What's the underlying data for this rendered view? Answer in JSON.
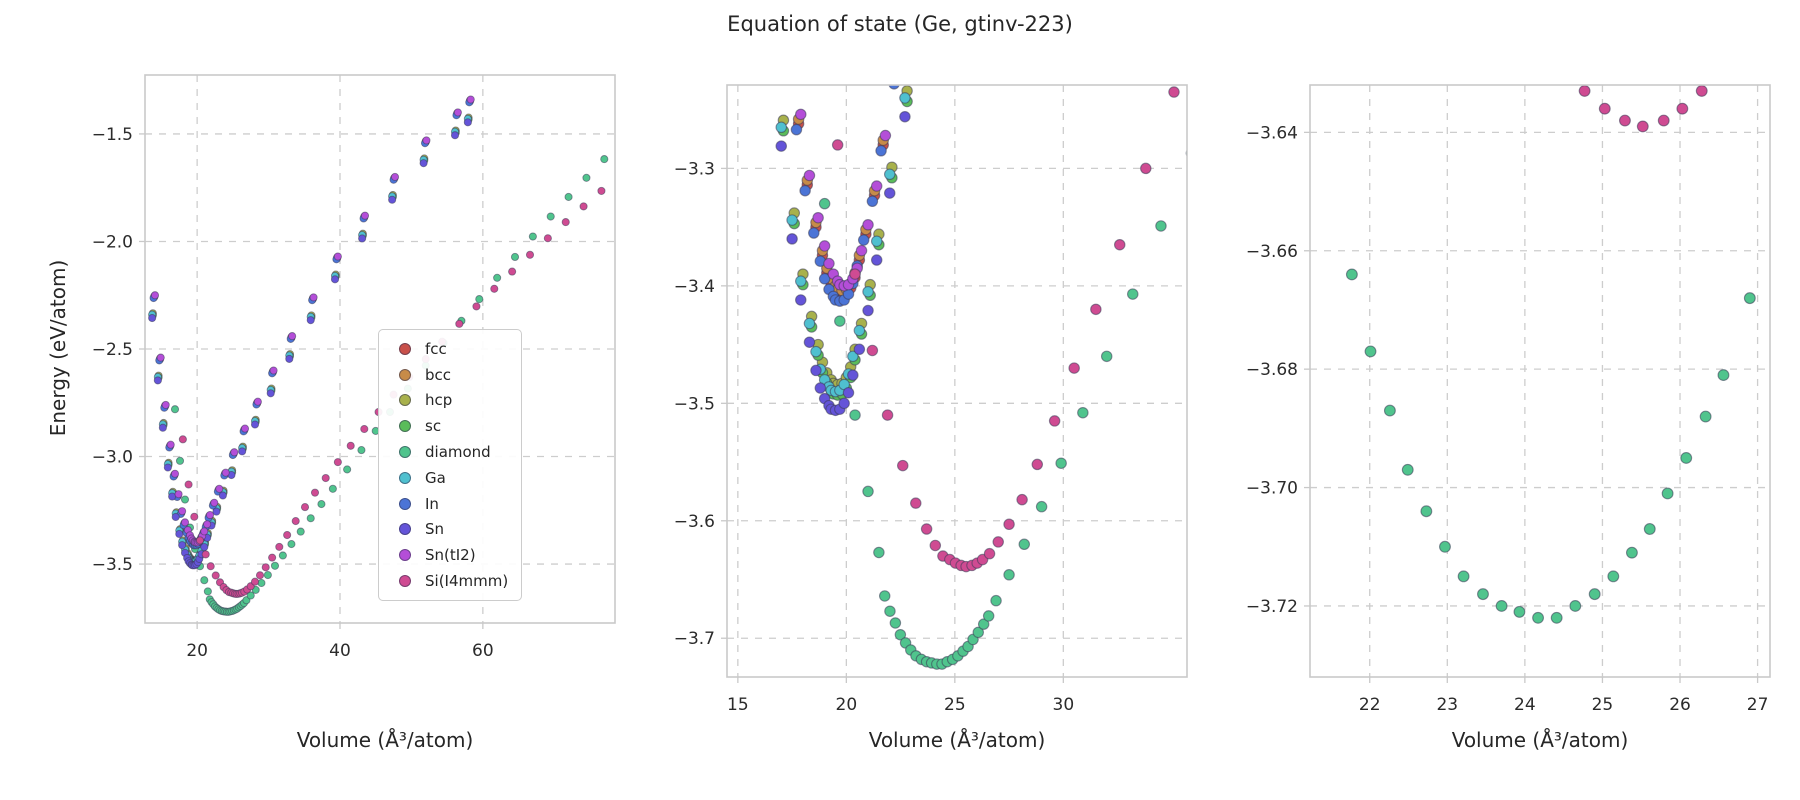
{
  "title": "Equation of state (Ge, gtinv-223)",
  "ylabel": "Energy (eV/atom)",
  "xlabel": "Volume (Å³/atom)",
  "style": {
    "grid_color": "#cdcdcd",
    "spine_color": "#c9c9c9",
    "marker_edge": "#3a3a55",
    "text_color": "#2b2b2b"
  },
  "chart_data": [
    {
      "type": "scatter",
      "panel": "overview",
      "xlim": [
        12.7,
        78.5
      ],
      "ylim": [
        -3.774,
        -1.226
      ],
      "xticks": [
        20,
        40,
        60
      ],
      "xtick_labels": [
        "20",
        "40",
        "60"
      ],
      "yticks": [
        -1.5,
        -2.0,
        -2.5,
        -3.0,
        -3.5
      ],
      "ytick_labels": [
        "−1.5",
        "−2.0",
        "−2.5",
        "−3.0",
        "−3.5"
      ],
      "xlabel": "Volume (Å³/atom)",
      "ylabel": "Energy (eV/atom)",
      "grid": true,
      "legend_position": "inside lower-right",
      "marker_radius": 3.6,
      "series": [
        {
          "name": "fcc",
          "color": "#c8504a",
          "x": [
            14.0,
            14.8,
            15.5,
            16.2,
            16.8,
            17.3,
            17.8,
            18.2,
            18.6,
            18.9,
            19.1,
            19.3,
            19.5,
            19.6,
            19.8,
            20.0,
            20.2,
            20.4,
            20.6,
            20.9,
            21.3,
            21.7,
            22.3,
            23.0,
            23.9,
            25.1,
            26.6,
            28.4,
            30.6,
            33.2,
            36.2,
            39.6,
            43.4,
            47.6,
            52.0,
            56.4,
            58.2
          ],
          "y": [
            -2.258,
            -2.548,
            -2.768,
            -2.953,
            -3.088,
            -3.183,
            -3.262,
            -3.314,
            -3.35,
            -3.374,
            -3.389,
            -3.398,
            -3.404,
            -3.407,
            -3.408,
            -3.407,
            -3.402,
            -3.393,
            -3.378,
            -3.356,
            -3.323,
            -3.28,
            -3.223,
            -3.158,
            -3.083,
            -2.988,
            -2.878,
            -2.753,
            -2.608,
            -2.448,
            -2.268,
            -2.078,
            -1.888,
            -1.708,
            -1.538,
            -1.408,
            -1.348
          ]
        },
        {
          "name": "bcc",
          "color": "#c78b48",
          "x": [
            14.0,
            14.8,
            15.5,
            16.2,
            16.8,
            17.3,
            17.8,
            18.2,
            18.6,
            18.9,
            19.1,
            19.3,
            19.5,
            19.6,
            19.8,
            20.0,
            20.2,
            20.4,
            20.6,
            20.9,
            21.3,
            21.7,
            22.3,
            23.0,
            23.9,
            25.1,
            26.6,
            28.4,
            30.6,
            33.2,
            36.2,
            39.6,
            43.4,
            47.6,
            52.0,
            56.4,
            58.2
          ],
          "y": [
            -2.254,
            -2.544,
            -2.764,
            -2.949,
            -3.084,
            -3.179,
            -3.258,
            -3.31,
            -3.346,
            -3.37,
            -3.385,
            -3.394,
            -3.4,
            -3.403,
            -3.404,
            -3.403,
            -3.398,
            -3.389,
            -3.374,
            -3.352,
            -3.319,
            -3.276,
            -3.219,
            -3.154,
            -3.079,
            -2.984,
            -2.874,
            -2.749,
            -2.604,
            -2.444,
            -2.264,
            -2.074,
            -1.884,
            -1.704,
            -1.534,
            -1.404,
            -1.344
          ]
        },
        {
          "name": "hcp",
          "color": "#a8b14c",
          "x": [
            13.8,
            14.6,
            15.3,
            16.0,
            16.6,
            17.1,
            17.6,
            18.0,
            18.4,
            18.7,
            18.9,
            19.1,
            19.3,
            19.4,
            19.6,
            19.8,
            20.0,
            20.2,
            20.4,
            20.7,
            21.1,
            21.5,
            22.1,
            22.8,
            23.7,
            24.9,
            26.4,
            28.2,
            30.4,
            33.0,
            36.0,
            39.4,
            43.2,
            47.4,
            51.8,
            56.2,
            58.0
          ],
          "y": [
            -2.334,
            -2.624,
            -2.844,
            -3.029,
            -3.164,
            -3.259,
            -3.338,
            -3.39,
            -3.426,
            -3.45,
            -3.465,
            -3.474,
            -3.48,
            -3.483,
            -3.484,
            -3.483,
            -3.478,
            -3.469,
            -3.454,
            -3.432,
            -3.399,
            -3.356,
            -3.299,
            -3.234,
            -3.159,
            -3.064,
            -2.954,
            -2.829,
            -2.684,
            -2.524,
            -2.344,
            -2.154,
            -1.964,
            -1.784,
            -1.614,
            -1.484,
            -1.424
          ]
        },
        {
          "name": "sc",
          "color": "#5abc5a",
          "x": [
            13.8,
            14.6,
            15.3,
            16.0,
            16.6,
            17.1,
            17.6,
            18.0,
            18.4,
            18.7,
            18.9,
            19.1,
            19.3,
            19.4,
            19.6,
            19.8,
            20.0,
            20.2,
            20.4,
            20.7,
            21.1,
            21.5,
            22.1,
            22.8,
            23.7,
            24.9,
            26.4,
            28.2,
            30.4,
            33.0,
            36.0,
            39.4,
            43.2,
            47.4,
            51.8,
            56.2,
            58.0
          ],
          "y": [
            -2.343,
            -2.633,
            -2.853,
            -3.038,
            -3.173,
            -3.268,
            -3.347,
            -3.399,
            -3.435,
            -3.459,
            -3.474,
            -3.483,
            -3.489,
            -3.492,
            -3.493,
            -3.492,
            -3.487,
            -3.478,
            -3.463,
            -3.441,
            -3.408,
            -3.365,
            -3.308,
            -3.243,
            -3.168,
            -3.073,
            -2.963,
            -2.838,
            -2.693,
            -2.533,
            -2.353,
            -2.163,
            -1.973,
            -1.793,
            -1.623,
            -1.493,
            -1.433
          ]
        },
        {
          "name": "diamond",
          "color": "#50c48d",
          "x": [
            16.9,
            17.6,
            18.3,
            19.0,
            19.7,
            20.4,
            21.0,
            21.5,
            21.77,
            22.01,
            22.26,
            22.49,
            22.73,
            22.97,
            23.21,
            23.46,
            23.7,
            23.93,
            24.17,
            24.41,
            24.65,
            24.9,
            25.14,
            25.38,
            25.61,
            25.84,
            26.08,
            26.33,
            26.56,
            26.9,
            27.5,
            28.2,
            29.0,
            29.9,
            30.9,
            32.0,
            33.2,
            34.5,
            35.9,
            37.4,
            39.0,
            41.0,
            43.0,
            45.0,
            47.0,
            49.5,
            52.0,
            54.5,
            57.0,
            59.5,
            62.0,
            64.5,
            67.0,
            69.5,
            72.0,
            74.5,
            77.0
          ],
          "y": [
            -2.78,
            -3.02,
            -3.2,
            -3.33,
            -3.43,
            -3.51,
            -3.575,
            -3.627,
            -3.664,
            -3.677,
            -3.687,
            -3.697,
            -3.704,
            -3.71,
            -3.715,
            -3.718,
            -3.72,
            -3.721,
            -3.722,
            -3.722,
            -3.72,
            -3.718,
            -3.715,
            -3.711,
            -3.707,
            -3.701,
            -3.695,
            -3.688,
            -3.681,
            -3.668,
            -3.646,
            -3.62,
            -3.588,
            -3.551,
            -3.508,
            -3.46,
            -3.407,
            -3.349,
            -3.287,
            -3.221,
            -3.15,
            -3.06,
            -2.97,
            -2.881,
            -2.793,
            -2.684,
            -2.577,
            -2.472,
            -2.369,
            -2.268,
            -2.169,
            -2.072,
            -1.977,
            -1.884,
            -1.793,
            -1.704,
            -1.617
          ]
        },
        {
          "name": "Ga",
          "color": "#4fc0cf",
          "x": [
            13.7,
            14.5,
            15.2,
            15.9,
            16.5,
            17.0,
            17.5,
            17.9,
            18.3,
            18.6,
            18.8,
            19.0,
            19.2,
            19.3,
            19.5,
            19.7,
            19.9,
            20.1,
            20.3,
            20.6,
            21.0,
            21.4,
            22.0,
            22.7,
            23.6,
            24.8,
            26.3,
            28.1,
            30.3,
            32.9,
            35.9,
            39.3,
            43.1,
            47.3,
            51.7,
            56.1,
            57.9
          ],
          "y": [
            -2.34,
            -2.63,
            -2.85,
            -3.035,
            -3.17,
            -3.265,
            -3.344,
            -3.396,
            -3.432,
            -3.456,
            -3.471,
            -3.48,
            -3.486,
            -3.489,
            -3.49,
            -3.489,
            -3.484,
            -3.475,
            -3.46,
            -3.438,
            -3.405,
            -3.362,
            -3.305,
            -3.24,
            -3.165,
            -3.07,
            -2.96,
            -2.835,
            -2.69,
            -2.53,
            -2.35,
            -2.16,
            -1.97,
            -1.79,
            -1.62,
            -1.49,
            -1.43
          ]
        },
        {
          "name": "In",
          "color": "#4b74d6",
          "x": [
            13.9,
            14.7,
            15.4,
            16.1,
            16.7,
            17.2,
            17.7,
            18.1,
            18.5,
            18.8,
            19.0,
            19.2,
            19.4,
            19.5,
            19.7,
            19.9,
            20.1,
            20.3,
            20.5,
            20.8,
            21.2,
            21.6,
            22.2,
            22.9,
            23.8,
            25.0,
            26.5,
            28.3,
            30.5,
            33.1,
            36.1,
            39.5,
            43.3,
            47.5,
            51.9,
            56.3,
            58.1
          ],
          "y": [
            -2.263,
            -2.553,
            -2.773,
            -2.958,
            -3.093,
            -3.188,
            -3.267,
            -3.319,
            -3.355,
            -3.379,
            -3.394,
            -3.403,
            -3.409,
            -3.412,
            -3.413,
            -3.412,
            -3.407,
            -3.398,
            -3.383,
            -3.361,
            -3.328,
            -3.285,
            -3.228,
            -3.163,
            -3.088,
            -2.993,
            -2.883,
            -2.758,
            -2.613,
            -2.453,
            -2.273,
            -2.083,
            -1.893,
            -1.713,
            -1.543,
            -1.413,
            -1.353
          ]
        },
        {
          "name": "Sn",
          "color": "#6454d8",
          "x": [
            13.7,
            14.5,
            15.2,
            15.9,
            16.5,
            17.0,
            17.5,
            17.9,
            18.3,
            18.6,
            18.8,
            19.0,
            19.2,
            19.3,
            19.5,
            19.7,
            19.9,
            20.1,
            20.3,
            20.6,
            21.0,
            21.4,
            22.0,
            22.7,
            23.6,
            24.8,
            26.3,
            28.1,
            30.3,
            32.9,
            35.9,
            39.3,
            43.1,
            47.3,
            51.7,
            56.1,
            57.9
          ],
          "y": [
            -2.356,
            -2.646,
            -2.866,
            -3.051,
            -3.186,
            -3.281,
            -3.36,
            -3.412,
            -3.448,
            -3.472,
            -3.487,
            -3.496,
            -3.502,
            -3.505,
            -3.506,
            -3.505,
            -3.5,
            -3.491,
            -3.476,
            -3.454,
            -3.421,
            -3.378,
            -3.321,
            -3.256,
            -3.181,
            -3.086,
            -2.976,
            -2.851,
            -2.706,
            -2.546,
            -2.366,
            -2.176,
            -1.986,
            -1.806,
            -1.636,
            -1.506,
            -1.446
          ]
        },
        {
          "name": "Sn(tI2)",
          "color": "#b44ed8",
          "x": [
            14.1,
            14.9,
            15.6,
            16.3,
            16.9,
            17.4,
            17.9,
            18.3,
            18.7,
            19.0,
            19.2,
            19.4,
            19.6,
            19.7,
            19.9,
            20.1,
            20.3,
            20.5,
            20.7,
            21.0,
            21.4,
            21.8,
            22.4,
            23.1,
            24.0,
            25.2,
            26.7,
            28.5,
            30.7,
            33.3,
            36.3,
            39.7,
            43.5,
            47.7,
            52.1,
            56.5,
            58.3
          ],
          "y": [
            -2.25,
            -2.54,
            -2.76,
            -2.945,
            -3.08,
            -3.175,
            -3.254,
            -3.306,
            -3.342,
            -3.366,
            -3.381,
            -3.39,
            -3.396,
            -3.399,
            -3.4,
            -3.399,
            -3.394,
            -3.385,
            -3.37,
            -3.348,
            -3.315,
            -3.272,
            -3.215,
            -3.15,
            -3.075,
            -2.98,
            -2.87,
            -2.745,
            -2.6,
            -2.44,
            -2.26,
            -2.07,
            -1.88,
            -1.7,
            -1.53,
            -1.4,
            -1.34
          ]
        },
        {
          "name": "Si(I4mmm)",
          "color": "#cf4b92",
          "x": [
            18.0,
            18.8,
            19.6,
            20.4,
            21.2,
            21.9,
            22.6,
            23.2,
            23.7,
            24.1,
            24.45,
            24.77,
            25.03,
            25.29,
            25.52,
            25.79,
            26.03,
            26.28,
            26.6,
            27.0,
            27.5,
            28.1,
            28.8,
            29.6,
            30.5,
            31.5,
            32.6,
            33.8,
            35.1,
            36.5,
            38.0,
            39.7,
            41.5,
            43.4,
            45.4,
            47.5,
            49.7,
            52.0,
            54.3,
            56.7,
            59.1,
            61.6,
            64.1,
            66.6,
            69.1,
            71.6,
            74.1,
            76.6
          ],
          "y": [
            -2.92,
            -3.13,
            -3.28,
            -3.39,
            -3.455,
            -3.51,
            -3.553,
            -3.585,
            -3.607,
            -3.621,
            -3.63,
            -3.633,
            -3.636,
            -3.638,
            -3.639,
            -3.638,
            -3.636,
            -3.633,
            -3.628,
            -3.618,
            -3.603,
            -3.582,
            -3.552,
            -3.515,
            -3.47,
            -3.42,
            -3.365,
            -3.3,
            -3.235,
            -3.168,
            -3.1,
            -3.026,
            -2.95,
            -2.872,
            -2.793,
            -2.712,
            -2.63,
            -2.547,
            -2.466,
            -2.383,
            -2.302,
            -2.22,
            -2.14,
            -2.062,
            -1.985,
            -1.91,
            -1.837,
            -1.765
          ]
        }
      ]
    },
    {
      "type": "scatter",
      "panel": "zoom-middle",
      "xlim": [
        14.5,
        35.7
      ],
      "ylim": [
        -3.733,
        -3.229
      ],
      "xticks": [
        15,
        20,
        25,
        30
      ],
      "xtick_labels": [
        "15",
        "20",
        "25",
        "30"
      ],
      "yticks": [
        -3.3,
        -3.4,
        -3.5,
        -3.6,
        -3.7
      ],
      "ytick_labels": [
        "−3.3",
        "−3.4",
        "−3.5",
        "−3.6",
        "−3.7"
      ],
      "xlabel": "Volume (Å³/atom)",
      "grid": true,
      "marker_radius": 5.2,
      "series_ref": 0
    },
    {
      "type": "scatter",
      "panel": "zoom-right",
      "xlim": [
        21.23,
        27.16
      ],
      "ylim": [
        -3.732,
        -3.632
      ],
      "xticks": [
        22,
        23,
        24,
        25,
        26,
        27
      ],
      "xtick_labels": [
        "22",
        "23",
        "24",
        "25",
        "26",
        "27"
      ],
      "yticks": [
        -3.64,
        -3.66,
        -3.68,
        -3.7,
        -3.72
      ],
      "ytick_labels": [
        "−3.64",
        "−3.66",
        "−3.68",
        "−3.70",
        "−3.72"
      ],
      "xlabel": "Volume (Å³/atom)",
      "grid": true,
      "marker_radius": 5.4,
      "series_ref": 0
    }
  ]
}
